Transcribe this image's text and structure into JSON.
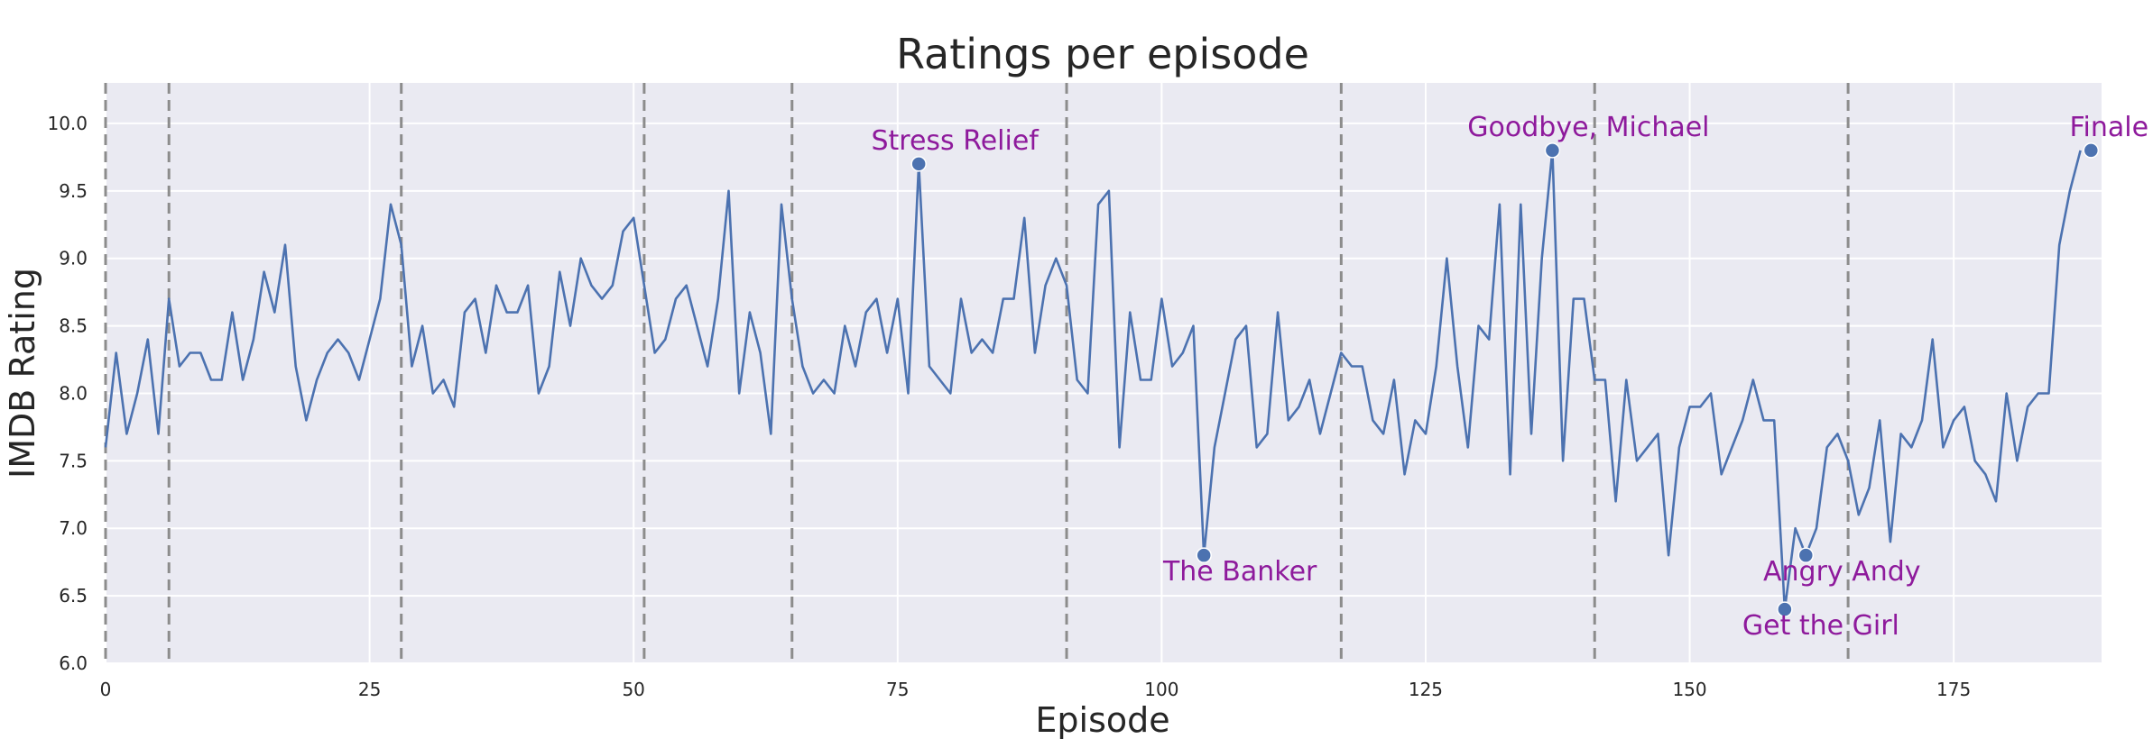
{
  "chart_data": {
    "type": "line",
    "title": "Ratings per episode",
    "xlabel": "Episode",
    "ylabel": "IMDB Rating",
    "xlim": [
      0,
      189
    ],
    "ylim": [
      6.0,
      10.3
    ],
    "xticks": [
      0,
      25,
      50,
      75,
      100,
      125,
      150,
      175
    ],
    "yticks": [
      6.0,
      6.5,
      7.0,
      7.5,
      8.0,
      8.5,
      9.0,
      9.5,
      10.0
    ],
    "grid": true,
    "season_boundaries": [
      0,
      6,
      28,
      51,
      65,
      91,
      117,
      141,
      165
    ],
    "colors": {
      "line": "#4c72b0",
      "annotation": "#8e1a9c",
      "boundary": "#8c8c8c",
      "background": "#eaeaf2"
    },
    "series": [
      {
        "values": [
          7.6,
          8.3,
          7.7,
          8.0,
          8.4,
          7.7,
          8.7,
          8.2,
          8.3,
          8.3,
          8.1,
          8.1,
          8.6,
          8.1,
          8.4,
          8.9,
          8.6,
          9.1,
          8.2,
          7.8,
          8.1,
          8.3,
          8.4,
          8.3,
          8.1,
          8.4,
          8.7,
          9.4,
          9.1,
          8.2,
          8.5,
          8.0,
          8.1,
          7.9,
          8.6,
          8.7,
          8.3,
          8.8,
          8.6,
          8.6,
          8.8,
          8.0,
          8.2,
          8.9,
          8.5,
          9.0,
          8.8,
          8.7,
          8.8,
          9.2,
          9.3,
          8.8,
          8.3,
          8.4,
          8.7,
          8.8,
          8.5,
          8.2,
          8.7,
          9.5,
          8.0,
          8.6,
          8.3,
          7.7,
          9.4,
          8.7,
          8.2,
          8.0,
          8.1,
          8.0,
          8.5,
          8.2,
          8.6,
          8.7,
          8.3,
          8.7,
          8.0,
          9.7,
          8.2,
          8.1,
          8.0,
          8.7,
          8.3,
          8.4,
          8.3,
          8.7,
          8.7,
          9.3,
          8.3,
          8.8,
          9.0,
          8.8,
          8.1,
          8.0,
          9.4,
          9.5,
          7.6,
          8.6,
          8.1,
          8.1,
          8.7,
          8.2,
          8.3,
          8.5,
          6.8,
          7.6,
          8.0,
          8.4,
          8.5,
          7.6,
          7.7,
          8.6,
          7.8,
          7.9,
          8.1,
          7.7,
          8.0,
          8.3,
          8.2,
          8.2,
          7.8,
          7.7,
          8.1,
          7.4,
          7.8,
          7.7,
          8.2,
          9.0,
          8.2,
          7.6,
          8.5,
          8.4,
          9.4,
          7.4,
          9.4,
          7.7,
          9.0,
          9.8,
          7.5,
          8.7,
          8.7,
          8.1,
          8.1,
          7.2,
          8.1,
          7.5,
          7.6,
          7.7,
          6.8,
          7.6,
          7.9,
          7.9,
          8.0,
          7.4,
          7.6,
          7.8,
          8.1,
          7.8,
          7.8,
          6.4,
          7.0,
          6.8,
          7.0,
          7.6,
          7.7,
          7.5,
          7.1,
          7.3,
          7.8,
          6.9,
          7.7,
          7.6,
          7.8,
          8.4,
          7.6,
          7.8,
          7.9,
          7.5,
          7.4,
          7.2,
          8.0,
          7.5,
          7.9,
          8.0,
          8.0,
          9.1,
          9.5,
          9.8
        ]
      }
    ],
    "annotations": [
      {
        "label": "Stress Relief",
        "x": 77,
        "y": 9.7,
        "pos": "above"
      },
      {
        "label": "The Banker",
        "x": 104,
        "y": 6.8,
        "pos": "below"
      },
      {
        "label": "Goodbye, Michael",
        "x": 137,
        "y": 9.8,
        "pos": "above"
      },
      {
        "label": "Get the Girl",
        "x": 159,
        "y": 6.4,
        "pos": "below"
      },
      {
        "label": "Angry Andy",
        "x": 161,
        "y": 6.8,
        "pos": "below"
      },
      {
        "label": "Finale",
        "x": 188,
        "y": 9.8,
        "pos": "above"
      }
    ]
  }
}
